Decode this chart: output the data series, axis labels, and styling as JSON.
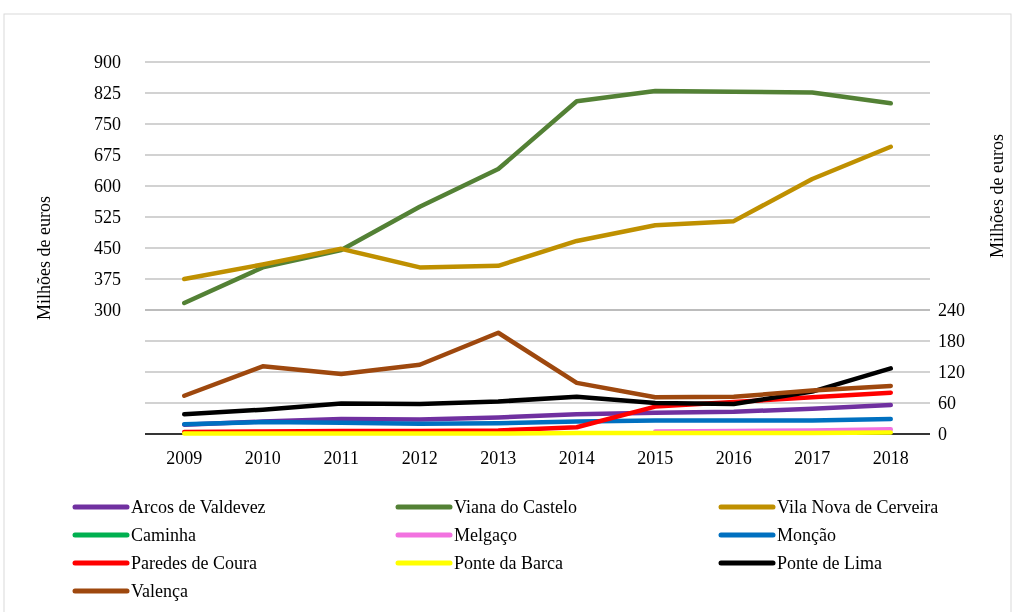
{
  "chart_data": {
    "type": "line",
    "ylabel": "Milhões de euros",
    "y2label": "Milhões de euros",
    "categories": [
      "2009",
      "2010",
      "2011",
      "2012",
      "2013",
      "2014",
      "2015",
      "2016",
      "2017",
      "2018"
    ],
    "ylim": [
      0,
      900
    ],
    "yticks": [
      300,
      375,
      450,
      525,
      600,
      675,
      750,
      825,
      900
    ],
    "y2lim": [
      0,
      720
    ],
    "y2ticks": [
      0,
      60,
      120,
      180,
      240
    ],
    "grid": true,
    "legend": "bottom",
    "marker": "none",
    "line_style": "solid",
    "series": [
      {
        "name": "Arcos de Valdevez",
        "color": "#7030a0",
        "axis": "y2",
        "values": [
          18,
          24,
          29,
          28,
          32,
          38,
          41,
          43,
          49,
          56
        ]
      },
      {
        "name": "Viana do Castelo",
        "color": "#538135",
        "values": [
          317,
          403,
          445,
          550,
          641,
          805,
          830,
          828,
          826,
          800
        ]
      },
      {
        "name": "Vila Nova de Cerveira",
        "color": "#bf9000",
        "values": [
          375,
          410,
          448,
          403,
          407,
          467,
          505,
          515,
          617,
          695
        ]
      },
      {
        "name": "Caminha",
        "color": "#00b050",
        "axis": "y2",
        "values": [
          null,
          null,
          null,
          null,
          null,
          null,
          null,
          null,
          null,
          null
        ]
      },
      {
        "name": "Melgaço",
        "color": "#f272e0",
        "axis": "y2",
        "values": [
          null,
          null,
          null,
          null,
          null,
          null,
          5,
          6,
          7,
          9
        ]
      },
      {
        "name": "Monção",
        "color": "#0070c0",
        "axis": "y2",
        "values": [
          19,
          23,
          22,
          20,
          21,
          24,
          26,
          26,
          26,
          29
        ]
      },
      {
        "name": "Paredes de Coura",
        "color": "#ff0000",
        "axis": "y2",
        "values": [
          4,
          5,
          6,
          6,
          7,
          13,
          53,
          62,
          71,
          80
        ]
      },
      {
        "name": "Ponte da Barca",
        "color": "#ffff00",
        "axis": "y2",
        "values": [
          1,
          1,
          1,
          1,
          1,
          2,
          2,
          2,
          2,
          3
        ]
      },
      {
        "name": "Ponte de Lima",
        "color": "#000000",
        "axis": "y2",
        "values": [
          38,
          47,
          59,
          58,
          63,
          72,
          60,
          58,
          82,
          127
        ]
      },
      {
        "name": "Valença",
        "color": "#9e480e",
        "axis": "y2",
        "values": [
          74,
          131,
          116,
          134,
          196,
          99,
          71,
          72,
          84,
          93
        ]
      }
    ]
  }
}
